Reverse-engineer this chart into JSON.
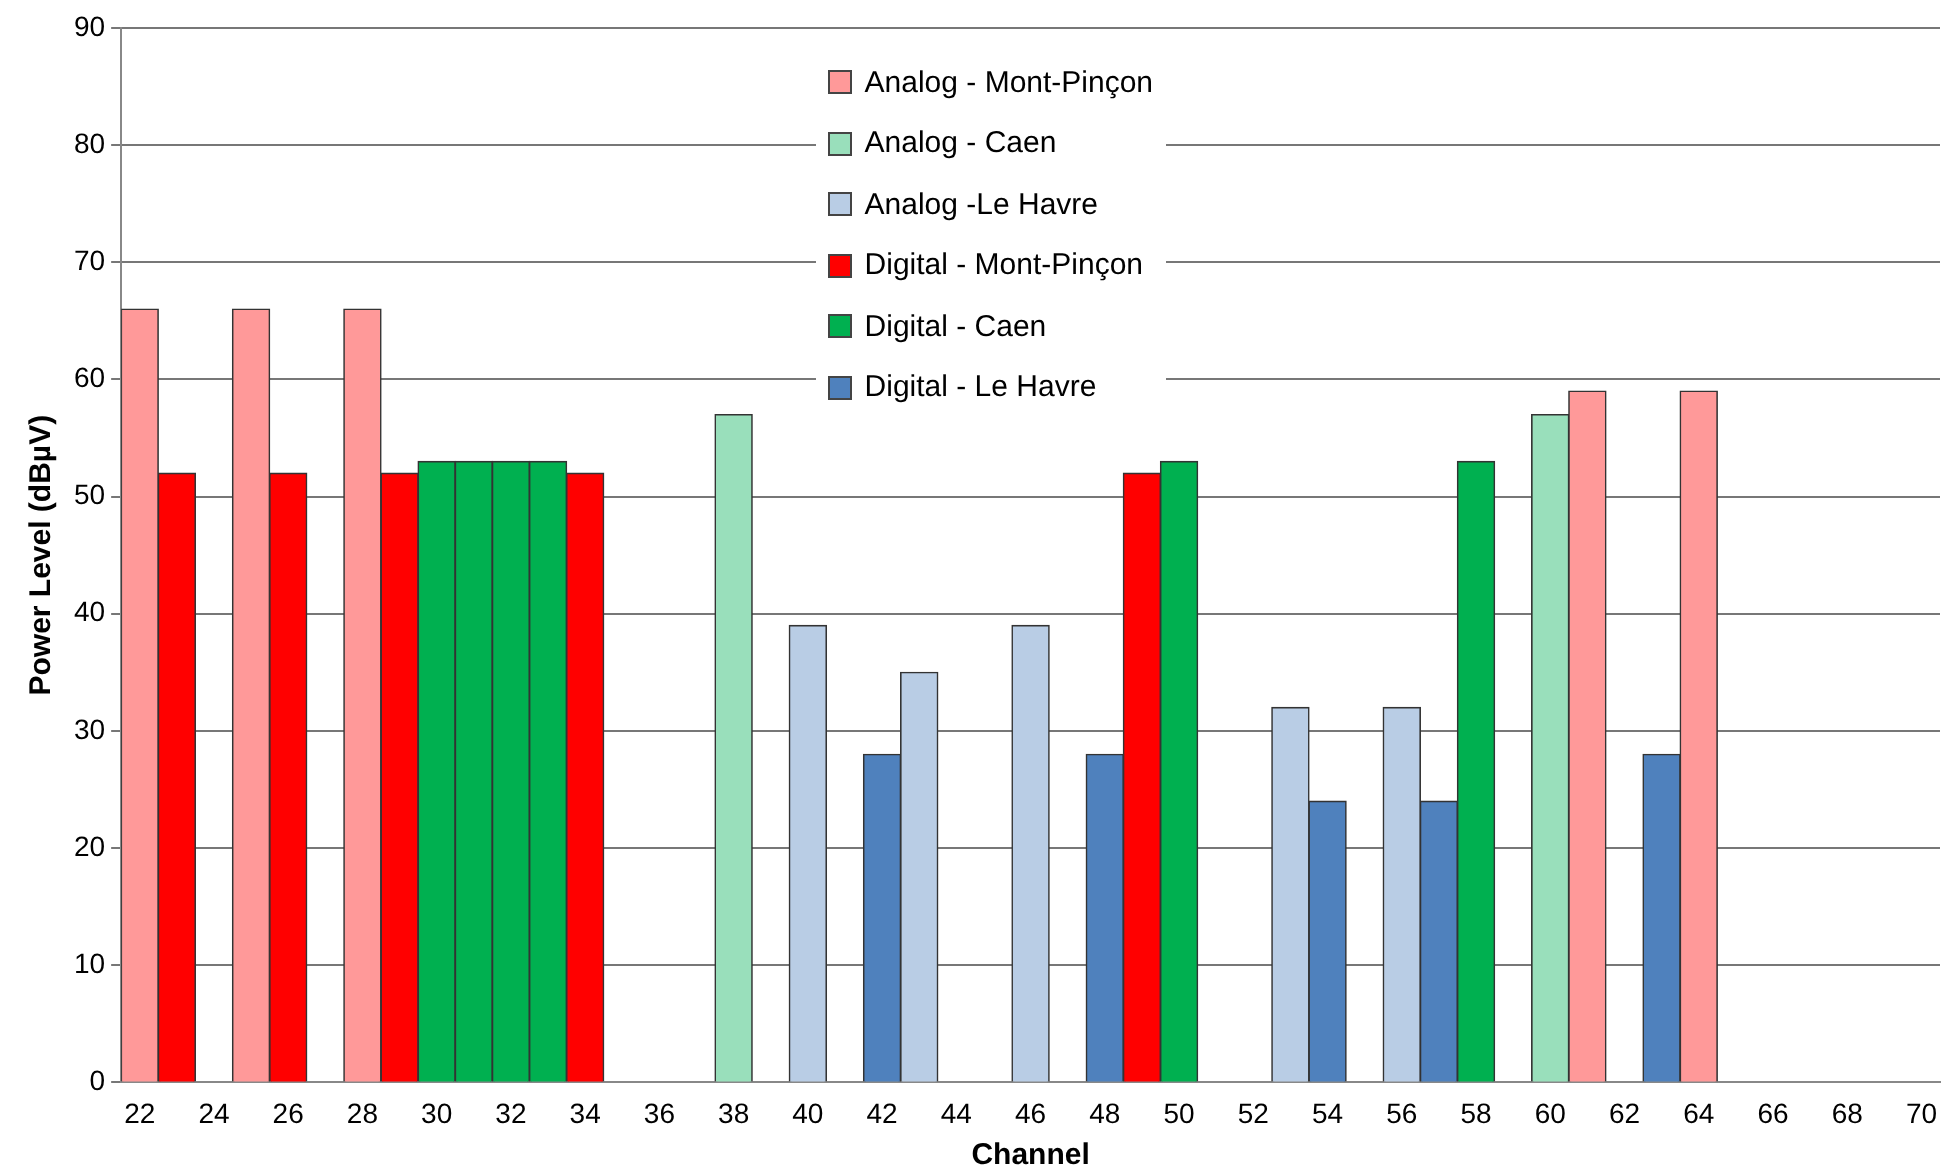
{
  "chart_data": {
    "type": "bar",
    "xlabel": "Channel",
    "ylabel": "Power Level (dBµV)",
    "categories": [
      "22",
      null,
      "24",
      null,
      "26",
      null,
      "28",
      null,
      "30",
      null,
      "32",
      null,
      "34",
      null,
      "36",
      null,
      "38",
      null,
      "40",
      null,
      "42",
      null,
      "44",
      null,
      "46",
      null,
      "48",
      null,
      "50",
      null,
      "52",
      null,
      "54",
      null,
      "56",
      null,
      "58",
      null,
      "60",
      null,
      "62",
      null,
      "64",
      null,
      "66",
      null,
      "68",
      null,
      "70"
    ],
    "series": [
      {
        "name": "Analog - Mont-Pinçon",
        "color": "#ff9999",
        "values": [
          66,
          null,
          null,
          66,
          null,
          null,
          66,
          null,
          null,
          null,
          null,
          null,
          null,
          null,
          null,
          null,
          null,
          null,
          null,
          null,
          null,
          null,
          null,
          null,
          null,
          null,
          null,
          null,
          null,
          null,
          null,
          null,
          null,
          null,
          null,
          null,
          null,
          null,
          null,
          59,
          null,
          null,
          59,
          null,
          null,
          null,
          null,
          null,
          null
        ]
      },
      {
        "name": "Analog - Caen",
        "color": "#99dfbb",
        "values": [
          null,
          null,
          null,
          null,
          null,
          null,
          null,
          null,
          null,
          null,
          null,
          null,
          null,
          null,
          null,
          null,
          57,
          null,
          null,
          null,
          null,
          null,
          null,
          null,
          null,
          null,
          null,
          null,
          null,
          null,
          null,
          null,
          null,
          null,
          null,
          null,
          null,
          null,
          57,
          null,
          null,
          null,
          null,
          null,
          null,
          null,
          null,
          null,
          null
        ]
      },
      {
        "name": "Analog -Le Havre",
        "color": "#b9cde5",
        "values": [
          null,
          null,
          null,
          null,
          null,
          null,
          null,
          null,
          null,
          null,
          null,
          null,
          null,
          null,
          null,
          null,
          null,
          null,
          39,
          null,
          null,
          35,
          null,
          null,
          39,
          null,
          null,
          null,
          null,
          null,
          null,
          32,
          null,
          null,
          32,
          null,
          null,
          null,
          null,
          null,
          null,
          null,
          null,
          null,
          null,
          null,
          null,
          null,
          null
        ]
      },
      {
        "name": "Digital - Mont-Pinçon",
        "color": "#ff0000",
        "values": [
          null,
          52,
          null,
          null,
          52,
          null,
          null,
          52,
          null,
          null,
          null,
          null,
          52,
          null,
          null,
          null,
          null,
          null,
          null,
          null,
          null,
          null,
          null,
          null,
          null,
          null,
          null,
          52,
          null,
          null,
          null,
          null,
          null,
          null,
          null,
          null,
          null,
          null,
          null,
          null,
          null,
          null,
          null,
          null,
          null,
          null,
          null,
          null,
          null
        ]
      },
      {
        "name": "Digital - Caen",
        "color": "#00b050",
        "values": [
          null,
          null,
          null,
          null,
          null,
          null,
          null,
          null,
          53,
          53,
          53,
          53,
          null,
          null,
          null,
          null,
          null,
          null,
          null,
          null,
          null,
          null,
          null,
          null,
          null,
          null,
          null,
          null,
          53,
          null,
          null,
          null,
          null,
          null,
          null,
          null,
          53,
          null,
          null,
          null,
          null,
          null,
          null,
          null,
          null,
          null,
          null,
          null,
          null
        ]
      },
      {
        "name": "Digital - Le Havre",
        "color": "#4f81bd",
        "values": [
          null,
          null,
          null,
          null,
          null,
          null,
          null,
          null,
          null,
          null,
          null,
          null,
          null,
          null,
          null,
          null,
          null,
          null,
          null,
          null,
          28,
          null,
          null,
          null,
          null,
          null,
          28,
          null,
          null,
          null,
          null,
          null,
          24,
          null,
          null,
          24,
          null,
          null,
          null,
          null,
          null,
          28,
          null,
          null,
          null,
          null,
          null,
          null,
          null
        ]
      }
    ],
    "ylim": [
      0,
      90
    ],
    "yticks": [
      0,
      10,
      20,
      30,
      40,
      50,
      60,
      70,
      80,
      90
    ],
    "grid": "y",
    "legend": "top"
  }
}
